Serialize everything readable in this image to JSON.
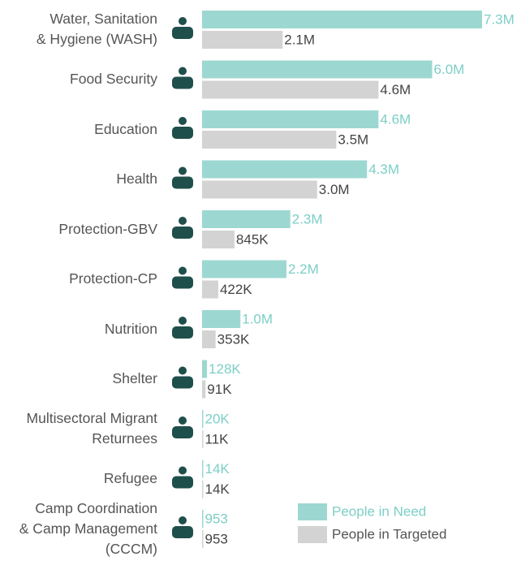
{
  "chart_data": {
    "type": "bar",
    "orientation": "horizontal",
    "categories": [
      "Water, Sanitation\n& Hygiene (WASH)",
      "Food Security",
      "Education",
      "Health",
      "Protection-GBV",
      "Protection-CP",
      "Nutrition",
      "Shelter",
      "Multisectoral Migrant\nReturnees",
      "Refugee",
      "Camp Coordination\n& Camp Management\n(CCCM)"
    ],
    "series": [
      {
        "name": "People in Need",
        "color": "#9cd8d1",
        "label_color": "#7ccfc6",
        "values": [
          7300000,
          6000000,
          4600000,
          4300000,
          2300000,
          2200000,
          1000000,
          128000,
          20000,
          14000,
          953
        ],
        "value_labels": [
          "7.3M",
          "6.0M",
          "4.6M",
          "4.3M",
          "2.3M",
          "2.2M",
          "1.0M",
          "128K",
          "20K",
          "14K",
          "953"
        ]
      },
      {
        "name": "People in Targeted",
        "color": "#d3d3d3",
        "label_color": "#444444",
        "values": [
          2100000,
          4600000,
          3500000,
          3000000,
          845000,
          422000,
          353000,
          91000,
          11000,
          14000,
          953
        ],
        "value_labels": [
          "2.1M",
          "4.6M",
          "3.5M",
          "3.0M",
          "845K",
          "422K",
          "353K",
          "91K",
          "11K",
          "14K",
          "953"
        ]
      }
    ],
    "legend": "bottom-right"
  }
}
